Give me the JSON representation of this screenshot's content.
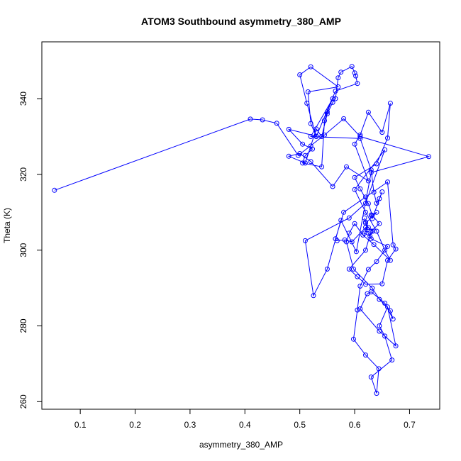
{
  "chart_data": {
    "type": "scatter",
    "title": "ATOM3 Southbound asymmetry_380_AMP",
    "xlabel": "asymmetry_380_AMP",
    "ylabel": "Theta (K)",
    "xlim": [
      0.03,
      0.755
    ],
    "ylim": [
      258,
      355
    ],
    "xticks": [
      0.1,
      0.2,
      0.3,
      0.4,
      0.5,
      0.6,
      0.7
    ],
    "yticks": [
      260,
      280,
      300,
      320,
      340
    ],
    "x_tick_labels": [
      "0.1",
      "0.2",
      "0.3",
      "0.4",
      "0.5",
      "0.6",
      "0.7"
    ],
    "y_tick_labels": [
      "260",
      "280",
      "300",
      "320",
      "340"
    ],
    "grid": false,
    "legend": "none",
    "marker": "open-circle",
    "connected": true,
    "color": "#0000ff",
    "series": [
      {
        "x": [
          0.053,
          0.41,
          0.432,
          0.458,
          0.497,
          0.545,
          0.58,
          0.61,
          0.735,
          0.63,
          0.603,
          0.575,
          0.55,
          0.525,
          0.51,
          0.59,
          0.62,
          0.655,
          0.6,
          0.62,
          0.64,
          0.655,
          0.665,
          0.635,
          0.615,
          0.6,
          0.59,
          0.585,
          0.598,
          0.632,
          0.645,
          0.665,
          0.67,
          0.655,
          0.63,
          0.623,
          0.61,
          0.645,
          0.675,
          0.66,
          0.645,
          0.655,
          0.668,
          0.63,
          0.64,
          0.644,
          0.62,
          0.598,
          0.605,
          0.61,
          0.625,
          0.64,
          0.66,
          0.63,
          0.62,
          0.595,
          0.582,
          0.568,
          0.565,
          0.58,
          0.62,
          0.66,
          0.67,
          0.675,
          0.66,
          0.65,
          0.62,
          0.605,
          0.59,
          0.62,
          0.63,
          0.645,
          0.632,
          0.625,
          0.61,
          0.6,
          0.64,
          0.66,
          0.665,
          0.65,
          0.625,
          0.61,
          0.6,
          0.625,
          0.585,
          0.56,
          0.52,
          0.5,
          0.48,
          0.51,
          0.52,
          0.53,
          0.54,
          0.55,
          0.56,
          0.565,
          0.57,
          0.575,
          0.595,
          0.6,
          0.602,
          0.605,
          0.565,
          0.53,
          0.513,
          0.5,
          0.52,
          0.57,
          0.515,
          0.52,
          0.53,
          0.48,
          0.505,
          0.523,
          0.51,
          0.505,
          0.54,
          0.545,
          0.55,
          0.56,
          0.52,
          0.61,
          0.63,
          0.635,
          0.64,
          0.645,
          0.65,
          0.632,
          0.63,
          0.64,
          0.62,
          0.623,
          0.618,
          0.628,
          0.633,
          0.625,
          0.62,
          0.618
        ],
        "y": [
          315.8,
          334.6,
          334.4,
          333.5,
          325,
          330.4,
          334.7,
          330,
          324.7,
          320.5,
          299.6,
          307.9,
          295,
          288,
          302.5,
          308.5,
          312.4,
          326.5,
          316,
          310,
          305,
          300,
          297.3,
          301.5,
          304,
          307,
          304.5,
          302.2,
          295,
          290,
          287,
          284,
          281.8,
          286,
          289,
          288.5,
          284.5,
          278.6,
          274.7,
          285,
          280,
          277.3,
          271,
          266.5,
          262.2,
          268.7,
          272.3,
          276.5,
          284.2,
          290.5,
          294.9,
          297,
          301,
          303,
          306,
          302.2,
          302.7,
          302.5,
          303,
          310,
          314,
          318,
          301.4,
          300.3,
          297.3,
          291.1,
          291,
          293,
          295,
          300,
          305,
          307,
          309.2,
          312.3,
          316.2,
          319.2,
          322.8,
          329.6,
          338.8,
          331.1,
          336.4,
          330.4,
          328,
          318.3,
          322,
          316.8,
          323.4,
          325.5,
          324.8,
          323,
          327.5,
          332,
          330,
          336,
          339,
          340,
          345.5,
          347,
          348.5,
          346.8,
          346,
          344,
          342,
          330,
          338.8,
          346.3,
          348.4,
          343.1,
          341.8,
          333.4,
          330.1,
          331.9,
          328,
          326.7,
          325,
          323,
          322,
          334.2,
          336.5,
          340,
          330,
          329.5,
          321.2,
          315.3,
          312.4,
          313.6,
          315.4,
          308.3,
          309.3,
          310,
          307.1,
          305.4,
          304.5,
          303.7,
          305,
          306,
          307.4,
          308.5
        ]
      }
    ]
  }
}
